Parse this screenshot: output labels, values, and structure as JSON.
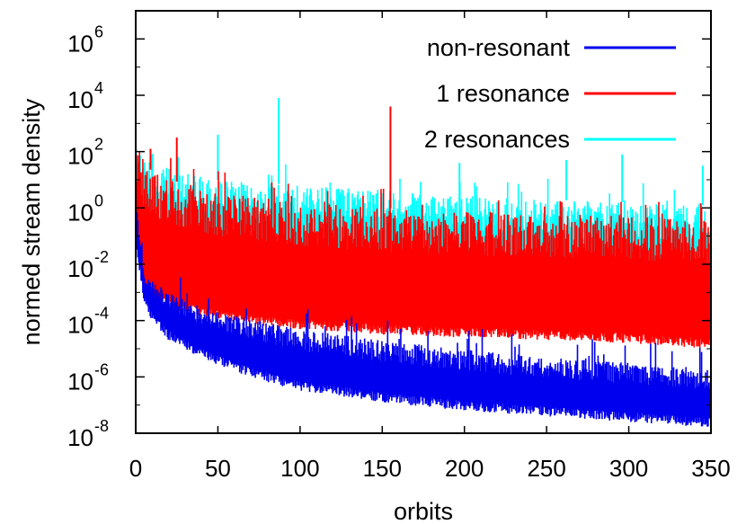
{
  "chart_data": {
    "type": "line",
    "title": "",
    "xlabel": "orbits",
    "ylabel": "normed stream density",
    "xlim": [
      0,
      350
    ],
    "ylim_log10": [
      -8,
      7
    ],
    "y_scale": "log",
    "x_ticks": [
      0,
      50,
      100,
      150,
      200,
      250,
      300,
      350
    ],
    "x_tick_labels": [
      "0",
      "50",
      "100",
      "150",
      "200",
      "250",
      "300",
      "350"
    ],
    "y_ticks_log10": [
      -8,
      -6,
      -4,
      -2,
      0,
      2,
      4,
      6
    ],
    "y_tick_labels": [
      {
        "base": "10",
        "exp": "-8"
      },
      {
        "base": "10",
        "exp": "-6"
      },
      {
        "base": "10",
        "exp": "-4"
      },
      {
        "base": "10",
        "exp": "-2"
      },
      {
        "base": "10",
        "exp": "0"
      },
      {
        "base": "10",
        "exp": "2"
      },
      {
        "base": "10",
        "exp": "4"
      },
      {
        "base": "10",
        "exp": "6"
      }
    ],
    "legend_position": "top-right",
    "series": [
      {
        "name": "non-resonant",
        "color": "#0000ee",
        "band_x": [
          0,
          5,
          10,
          20,
          35,
          50,
          75,
          100,
          150,
          200,
          250,
          300,
          350
        ],
        "lower_log10": [
          -1.2,
          -3.4,
          -4.0,
          -4.7,
          -5.2,
          -5.6,
          -6.1,
          -6.5,
          -6.9,
          -7.2,
          -7.4,
          -7.6,
          -7.8
        ],
        "upper_log10": [
          0.5,
          -2.3,
          -2.6,
          -3.0,
          -3.4,
          -3.7,
          -4.0,
          -4.3,
          -4.7,
          -5.0,
          -5.3,
          -5.5,
          -5.7
        ]
      },
      {
        "name": "1 resonance",
        "color": "#ff0000",
        "band_x": [
          0,
          5,
          10,
          20,
          35,
          50,
          75,
          100,
          150,
          200,
          250,
          300,
          350
        ],
        "lower_log10": [
          -1.0,
          -3.0,
          -3.3,
          -3.6,
          -3.8,
          -4.0,
          -4.2,
          -4.3,
          -4.5,
          -4.6,
          -4.7,
          -4.8,
          -5.0
        ],
        "upper_log10": [
          2.2,
          1.6,
          1.3,
          1.0,
          0.8,
          0.6,
          0.4,
          0.2,
          0.0,
          -0.1,
          -0.2,
          -0.3,
          -0.4
        ],
        "spikes": [
          {
            "x": 25,
            "log10": 2.5
          },
          {
            "x": 155,
            "log10": 3.6
          },
          {
            "x": 9,
            "log10": 2.1
          }
        ]
      },
      {
        "name": "2 resonances",
        "color": "#00ffff",
        "band_x": [
          0,
          5,
          10,
          20,
          35,
          50,
          75,
          100,
          150,
          200,
          250,
          300,
          350
        ],
        "lower_log10": [
          -1.0,
          -2.6,
          -2.8,
          -3.0,
          -3.1,
          -3.2,
          -3.3,
          -3.4,
          -3.5,
          -3.6,
          -3.7,
          -3.8,
          -4.0
        ],
        "upper_log10": [
          2.5,
          1.9,
          1.7,
          1.4,
          1.2,
          1.0,
          0.9,
          0.8,
          0.6,
          0.4,
          0.3,
          0.2,
          0.1
        ],
        "spikes": [
          {
            "x": 87,
            "log10": 3.9
          },
          {
            "x": 50,
            "log10": 2.6
          },
          {
            "x": 296,
            "log10": 1.9
          },
          {
            "x": 262,
            "log10": 1.7
          },
          {
            "x": 197,
            "log10": 1.6
          },
          {
            "x": 345,
            "log10": 1.5
          }
        ]
      }
    ]
  }
}
